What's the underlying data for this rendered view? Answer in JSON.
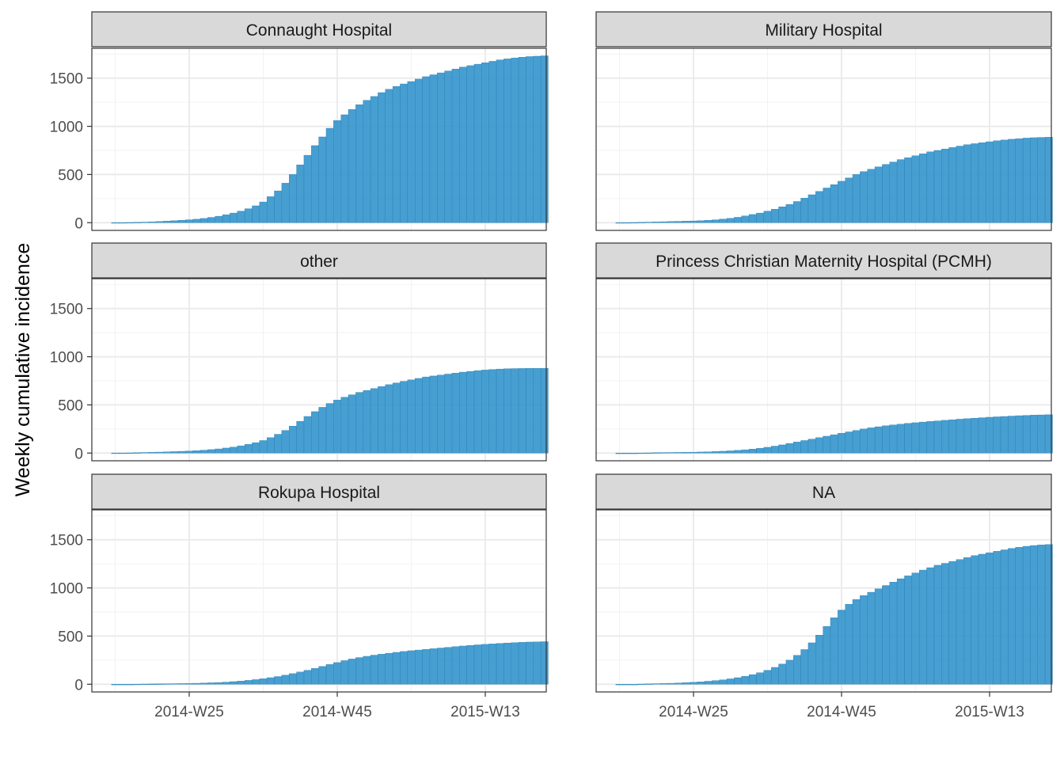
{
  "chart_data": {
    "type": "bar",
    "ylabel": "Weekly cumulative incidence",
    "xlabel": "",
    "x_tick_labels": [
      "2014-W25",
      "2014-W45",
      "2015-W13"
    ],
    "y_ticks": [
      0,
      500,
      1000,
      1500
    ],
    "ylim": [
      -80,
      1810
    ],
    "grid": true,
    "bar_color": "#2E91CB",
    "x_weeks": [
      "2014-W15",
      "2014-W16",
      "2014-W17",
      "2014-W18",
      "2014-W19",
      "2014-W20",
      "2014-W21",
      "2014-W22",
      "2014-W23",
      "2014-W24",
      "2014-W25",
      "2014-W26",
      "2014-W27",
      "2014-W28",
      "2014-W29",
      "2014-W30",
      "2014-W31",
      "2014-W32",
      "2014-W33",
      "2014-W34",
      "2014-W35",
      "2014-W36",
      "2014-W37",
      "2014-W38",
      "2014-W39",
      "2014-W40",
      "2014-W41",
      "2014-W42",
      "2014-W43",
      "2014-W44",
      "2014-W45",
      "2014-W46",
      "2014-W47",
      "2014-W48",
      "2014-W49",
      "2014-W50",
      "2014-W51",
      "2014-W52",
      "2015-W01",
      "2015-W02",
      "2015-W03",
      "2015-W04",
      "2015-W05",
      "2015-W06",
      "2015-W07",
      "2015-W08",
      "2015-W09",
      "2015-W10",
      "2015-W11",
      "2015-W12",
      "2015-W13",
      "2015-W14",
      "2015-W15",
      "2015-W16",
      "2015-W17",
      "2015-W18",
      "2015-W19",
      "2015-W20",
      "2015-W21"
    ],
    "facets": [
      {
        "name": "Connaught Hospital",
        "start_week": "2014-W15",
        "values": [
          1,
          1,
          2,
          4,
          6,
          9,
          12,
          16,
          20,
          25,
          30,
          36,
          44,
          55,
          67,
          82,
          100,
          120,
          145,
          175,
          215,
          270,
          330,
          410,
          500,
          600,
          700,
          800,
          890,
          980,
          1060,
          1120,
          1175,
          1225,
          1270,
          1310,
          1350,
          1385,
          1415,
          1440,
          1465,
          1490,
          1515,
          1535,
          1555,
          1575,
          1595,
          1615,
          1630,
          1645,
          1660,
          1675,
          1690,
          1700,
          1710,
          1718,
          1724,
          1728,
          1732
        ]
      },
      {
        "name": "Military Hospital",
        "start_week": "2014-W15",
        "values": [
          1,
          1,
          2,
          4,
          6,
          8,
          10,
          12,
          14,
          16,
          18,
          21,
          25,
          30,
          37,
          45,
          56,
          70,
          85,
          100,
          120,
          140,
          165,
          190,
          220,
          255,
          290,
          325,
          360,
          395,
          430,
          465,
          500,
          530,
          555,
          580,
          605,
          630,
          655,
          675,
          695,
          715,
          735,
          750,
          765,
          780,
          795,
          810,
          820,
          830,
          840,
          850,
          858,
          866,
          872,
          878,
          882,
          885,
          887
        ]
      },
      {
        "name": "other",
        "start_week": "2014-W15",
        "values": [
          1,
          1,
          2,
          4,
          6,
          8,
          10,
          12,
          15,
          18,
          21,
          25,
          30,
          36,
          43,
          52,
          62,
          75,
          90,
          108,
          130,
          160,
          195,
          235,
          280,
          330,
          380,
          430,
          475,
          515,
          550,
          580,
          605,
          630,
          650,
          670,
          690,
          710,
          728,
          745,
          760,
          775,
          790,
          800,
          810,
          820,
          830,
          840,
          848,
          856,
          862,
          868,
          872,
          875,
          877,
          878,
          879,
          879,
          880
        ]
      },
      {
        "name": "Princess Christian Maternity Hospital (PCMH)",
        "start_week": "2014-W15",
        "values": [
          0,
          0,
          0,
          1,
          2,
          4,
          5,
          6,
          7,
          8,
          9,
          11,
          13,
          16,
          19,
          23,
          28,
          34,
          41,
          50,
          60,
          72,
          85,
          100,
          115,
          130,
          145,
          160,
          175,
          190,
          205,
          220,
          235,
          250,
          262,
          273,
          283,
          292,
          300,
          308,
          315,
          322,
          328,
          334,
          340,
          346,
          352,
          357,
          362,
          367,
          372,
          376,
          380,
          384,
          388,
          391,
          394,
          396,
          398
        ]
      },
      {
        "name": "Rokupa Hospital",
        "start_week": "2014-W15",
        "values": [
          0,
          0,
          0,
          1,
          2,
          3,
          4,
          5,
          6,
          7,
          8,
          10,
          12,
          15,
          18,
          22,
          27,
          33,
          40,
          48,
          57,
          68,
          80,
          94,
          110,
          127,
          145,
          165,
          185,
          205,
          225,
          245,
          262,
          277,
          290,
          302,
          312,
          322,
          331,
          340,
          348,
          355,
          362,
          369,
          376,
          383,
          390,
          397,
          403,
          409,
          414,
          419,
          424,
          428,
          432,
          435,
          438,
          440,
          442
        ]
      },
      {
        "name": "NA",
        "start_week": "2014-W15",
        "values": [
          0,
          0,
          0,
          2,
          4,
          6,
          8,
          10,
          13,
          16,
          20,
          25,
          31,
          38,
          46,
          56,
          68,
          82,
          100,
          120,
          145,
          175,
          210,
          250,
          300,
          360,
          430,
          510,
          600,
          690,
          770,
          830,
          880,
          920,
          955,
          990,
          1025,
          1060,
          1095,
          1125,
          1155,
          1185,
          1210,
          1235,
          1255,
          1275,
          1295,
          1315,
          1335,
          1350,
          1365,
          1380,
          1395,
          1410,
          1422,
          1432,
          1440,
          1446,
          1450
        ]
      }
    ]
  }
}
